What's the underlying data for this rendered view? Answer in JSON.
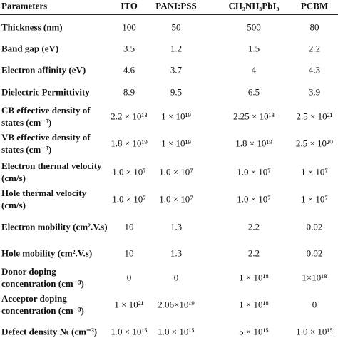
{
  "table": {
    "header": [
      "Parameters",
      "ITO",
      "PANI:PSS",
      "CH₃NH₃PbI₃",
      "PCBM"
    ],
    "rows": [
      [
        "Thickness (nm)",
        "100",
        "50",
        "500",
        "80"
      ],
      [
        "Band gap (eV)",
        "3.5",
        "1.2",
        "1.5",
        "2.2"
      ],
      [
        "Electron affinity (eV)",
        "4.6",
        "3.7",
        "4",
        "4.3"
      ],
      [
        "Dielectric Permittivity",
        "8.9",
        "9.5",
        "6.5",
        "3.9"
      ],
      [
        "CB effective density of states (cm⁻³)",
        "2.2 × 10¹⁸",
        "1 × 10¹⁹",
        "2.25 × 10¹⁸",
        "2.5 × 10²¹"
      ],
      [
        "VB effective density of states (cm⁻³)",
        "1.8 × 10¹⁹",
        "1 × 10¹⁹",
        "1.8 × 10¹⁹",
        "2.5 × 10²⁰"
      ],
      [
        "Electron thermal velocity (cm/s)",
        "1.0 × 10⁷",
        "1.0 × 10⁷",
        "1.0 × 10⁷",
        "1 × 10⁷"
      ],
      [
        "Hole thermal velocity (cm/s)",
        "1.0 × 10⁷",
        "1.0 × 10⁷",
        "1.0 × 10⁷",
        "1 × 10⁷"
      ],
      [
        "Electron mobility (cm².V.s)",
        "10",
        "1.3",
        "2.2",
        "0.02"
      ],
      [
        "Hole mobility (cm².V.s)",
        "10",
        "1.3",
        "2.2",
        "0.02"
      ],
      [
        "Donor doping concentration (cm⁻³)",
        "0",
        "0",
        "1 × 10¹⁸",
        "1×10¹⁸"
      ],
      [
        "Acceptor doping concentration (cm⁻³)",
        "1 × 10²¹",
        "2.06×10¹⁹",
        "1 × 10¹⁸",
        "0"
      ],
      [
        "Defect density Nₜ (cm⁻³)",
        "1.0 × 10¹⁵",
        "1.0 × 10¹⁵",
        "5 × 10¹⁵",
        "1.0 × 10¹⁵"
      ]
    ]
  }
}
